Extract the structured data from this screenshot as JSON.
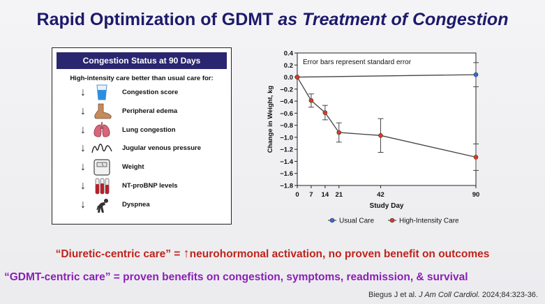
{
  "slide": {
    "title_part1": "Rapid Optimization of GDMT",
    "title_part2": "as Treatment of Congestion"
  },
  "panel": {
    "header": "Congestion Status at 90 Days",
    "subheader": "High-intensity care better than usual care for:",
    "items": [
      {
        "label": "Congestion score",
        "icon": "water-glass-icon"
      },
      {
        "label": "Peripheral edema",
        "icon": "foot-icon"
      },
      {
        "label": "Lung congestion",
        "icon": "lungs-icon"
      },
      {
        "label": "Jugular venous pressure",
        "icon": "waveform-icon"
      },
      {
        "label": "Weight",
        "icon": "scale-icon"
      },
      {
        "label": "NT-proBNP levels",
        "icon": "blood-tubes-icon"
      },
      {
        "label": "Dyspnea",
        "icon": "breathless-person-icon"
      }
    ]
  },
  "chart_data": {
    "type": "line",
    "annotation": "Error bars represent standard error",
    "xlabel": "Study Day",
    "ylabel": "Change in Weight, kg",
    "x_ticks": [
      "0",
      "7",
      "14",
      "21",
      "42",
      "90"
    ],
    "y_ticks": [
      "0.4",
      "0.2",
      "0.0",
      "−0.2",
      "−0.4",
      "−0.6",
      "−0.8",
      "−1.0",
      "−1.2",
      "−1.4",
      "−1.6",
      "−1.8"
    ],
    "xlim": [
      0,
      90
    ],
    "ylim": [
      -1.8,
      0.4
    ],
    "series": [
      {
        "name": "Usual Care",
        "color": "#2e6fd8",
        "points": [
          {
            "x": 0,
            "y": 0.0,
            "err": 0.0
          },
          {
            "x": 90,
            "y": 0.04,
            "err": 0.2
          }
        ]
      },
      {
        "name": "High-Intensity Care",
        "color": "#e03a22",
        "points": [
          {
            "x": 0,
            "y": 0.0,
            "err": 0.0
          },
          {
            "x": 7,
            "y": -0.39,
            "err": 0.11
          },
          {
            "x": 14,
            "y": -0.59,
            "err": 0.12
          },
          {
            "x": 21,
            "y": -0.92,
            "err": 0.16
          },
          {
            "x": 42,
            "y": -0.97,
            "err": 0.28
          },
          {
            "x": 90,
            "y": -1.33,
            "err": 0.22
          }
        ]
      }
    ]
  },
  "footer": {
    "line1_part1": "“Diuretic-centric care” =",
    "line1_arrow": "↑",
    "line1_part2": "neurohormonal activation, no proven benefit on outcomes",
    "line2": "“GDMT-centric care” = proven benefits on congestion, symptoms, readmission, & survival",
    "citation_part1": "Biegus J et al.",
    "citation_journal": "J Am Coll Cardiol.",
    "citation_part2": "2024;84:323-36."
  }
}
